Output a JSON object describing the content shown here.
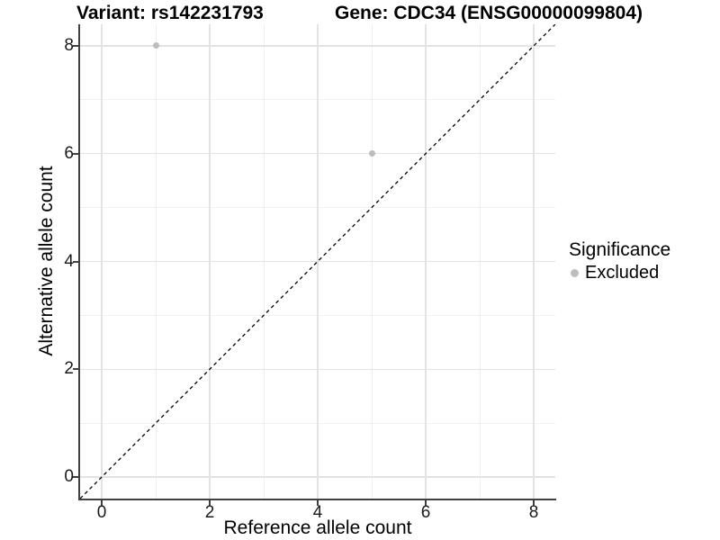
{
  "chart_data": {
    "type": "scatter",
    "title_left": "Variant: rs142231793",
    "title_right": "Gene: CDC34 (ENSG00000099804)",
    "xlabel": "Reference allele count",
    "ylabel": "Alternative allele count",
    "xlim": [
      -0.4,
      8.4
    ],
    "ylim": [
      -0.4,
      8.4
    ],
    "x_ticks": [
      0,
      2,
      4,
      6,
      8
    ],
    "y_ticks": [
      0,
      2,
      4,
      6,
      8
    ],
    "x_minor_ticks": [
      1,
      3,
      5,
      7
    ],
    "y_minor_ticks": [
      1,
      3,
      5,
      7
    ],
    "grid": true,
    "legend_position": "right",
    "series": [
      {
        "name": "Excluded",
        "color": "#bdbdbd",
        "points": [
          {
            "x": 1,
            "y": 8
          },
          {
            "x": 5,
            "y": 6
          }
        ]
      }
    ],
    "reference_line": {
      "kind": "identity",
      "equation": "y = x",
      "style": "dashed",
      "color": "#000000"
    },
    "legend": {
      "title": "Significance",
      "entries": [
        {
          "label": "Excluded",
          "color": "#bdbdbd"
        }
      ]
    },
    "colors": {
      "major_grid": "#e3e3e3",
      "minor_grid": "#efefef",
      "axis_line": "#404040",
      "background": "#ffffff"
    }
  }
}
